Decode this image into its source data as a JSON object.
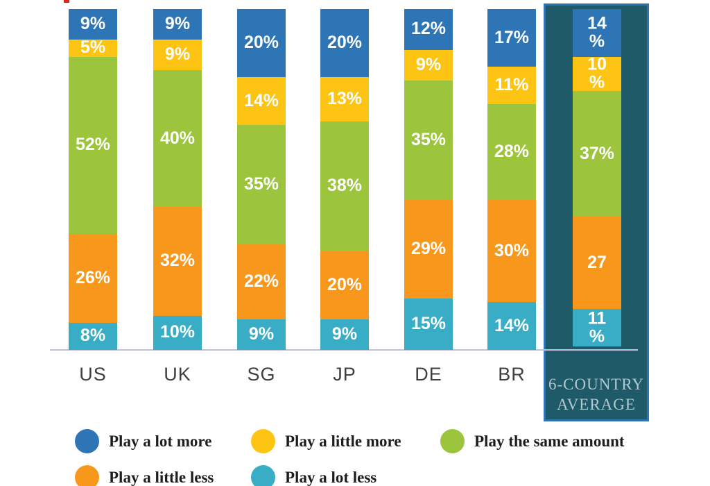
{
  "chart_data": {
    "type": "bar",
    "variant": "100%-stacked-column",
    "title": "",
    "categories": [
      "US",
      "UK",
      "SG",
      "JP",
      "DE",
      "BR",
      "6-COUNTRY AVERAGE"
    ],
    "series": [
      {
        "name": "Play a lot more",
        "color": "#2e75b6",
        "values": [
          9,
          9,
          20,
          20,
          12,
          17,
          14
        ]
      },
      {
        "name": "Play a little more",
        "color": "#fdc414",
        "values": [
          5,
          9,
          14,
          13,
          9,
          11,
          10
        ]
      },
      {
        "name": "Play the same amount",
        "color": "#9cc43c",
        "values": [
          52,
          40,
          35,
          38,
          35,
          28,
          37
        ]
      },
      {
        "name": "Play a little less",
        "color": "#f7981d",
        "values": [
          26,
          32,
          22,
          20,
          29,
          30,
          27
        ]
      },
      {
        "name": "Play a lot less",
        "color": "#39adc6",
        "values": [
          8,
          10,
          9,
          9,
          15,
          14,
          11
        ]
      }
    ],
    "stack_order_top_to_bottom": [
      "Play a lot more",
      "Play a little more",
      "Play the same amount",
      "Play a little less",
      "Play a lot less"
    ],
    "display_labels": [
      [
        "9%",
        "5%",
        "52%",
        "26%",
        "8%"
      ],
      [
        "9%",
        "9%",
        "40%",
        "32%",
        "10%"
      ],
      [
        "20%",
        "14%",
        "35%",
        "22%",
        "9%"
      ],
      [
        "20%",
        "13%",
        "38%",
        "20%",
        "9%"
      ],
      [
        "12%",
        "9%",
        "35%",
        "29%",
        "15%"
      ],
      [
        "17%",
        "11%",
        "28%",
        "30%",
        "14%"
      ],
      [
        "14\n%",
        "10\n%",
        "37%",
        "27",
        "11\n%"
      ]
    ],
    "ylim": [
      0,
      100
    ],
    "y_axis_visible": false,
    "gridlines": false,
    "legend_position": "bottom"
  },
  "x_axis": {
    "labels": [
      "US",
      "UK",
      "SG",
      "JP",
      "DE",
      "BR"
    ],
    "line_color": "#c3bce1"
  },
  "average_column": {
    "caption": "6-COUNTRY\nAVERAGE",
    "highlighted": true,
    "panel_color": "#1e5a67",
    "border_color": "#2e75b6",
    "caption_color": "#b3c7d1"
  },
  "legend": {
    "items": [
      {
        "label": "Play a lot more",
        "color": "#2e75b6"
      },
      {
        "label": "Play a little more",
        "color": "#fdc414"
      },
      {
        "label": "Play the same amount",
        "color": "#9cc43c"
      },
      {
        "label": "Play a little less",
        "color": "#f7981d"
      },
      {
        "label": "Play a lot less",
        "color": "#39adc6"
      }
    ]
  }
}
